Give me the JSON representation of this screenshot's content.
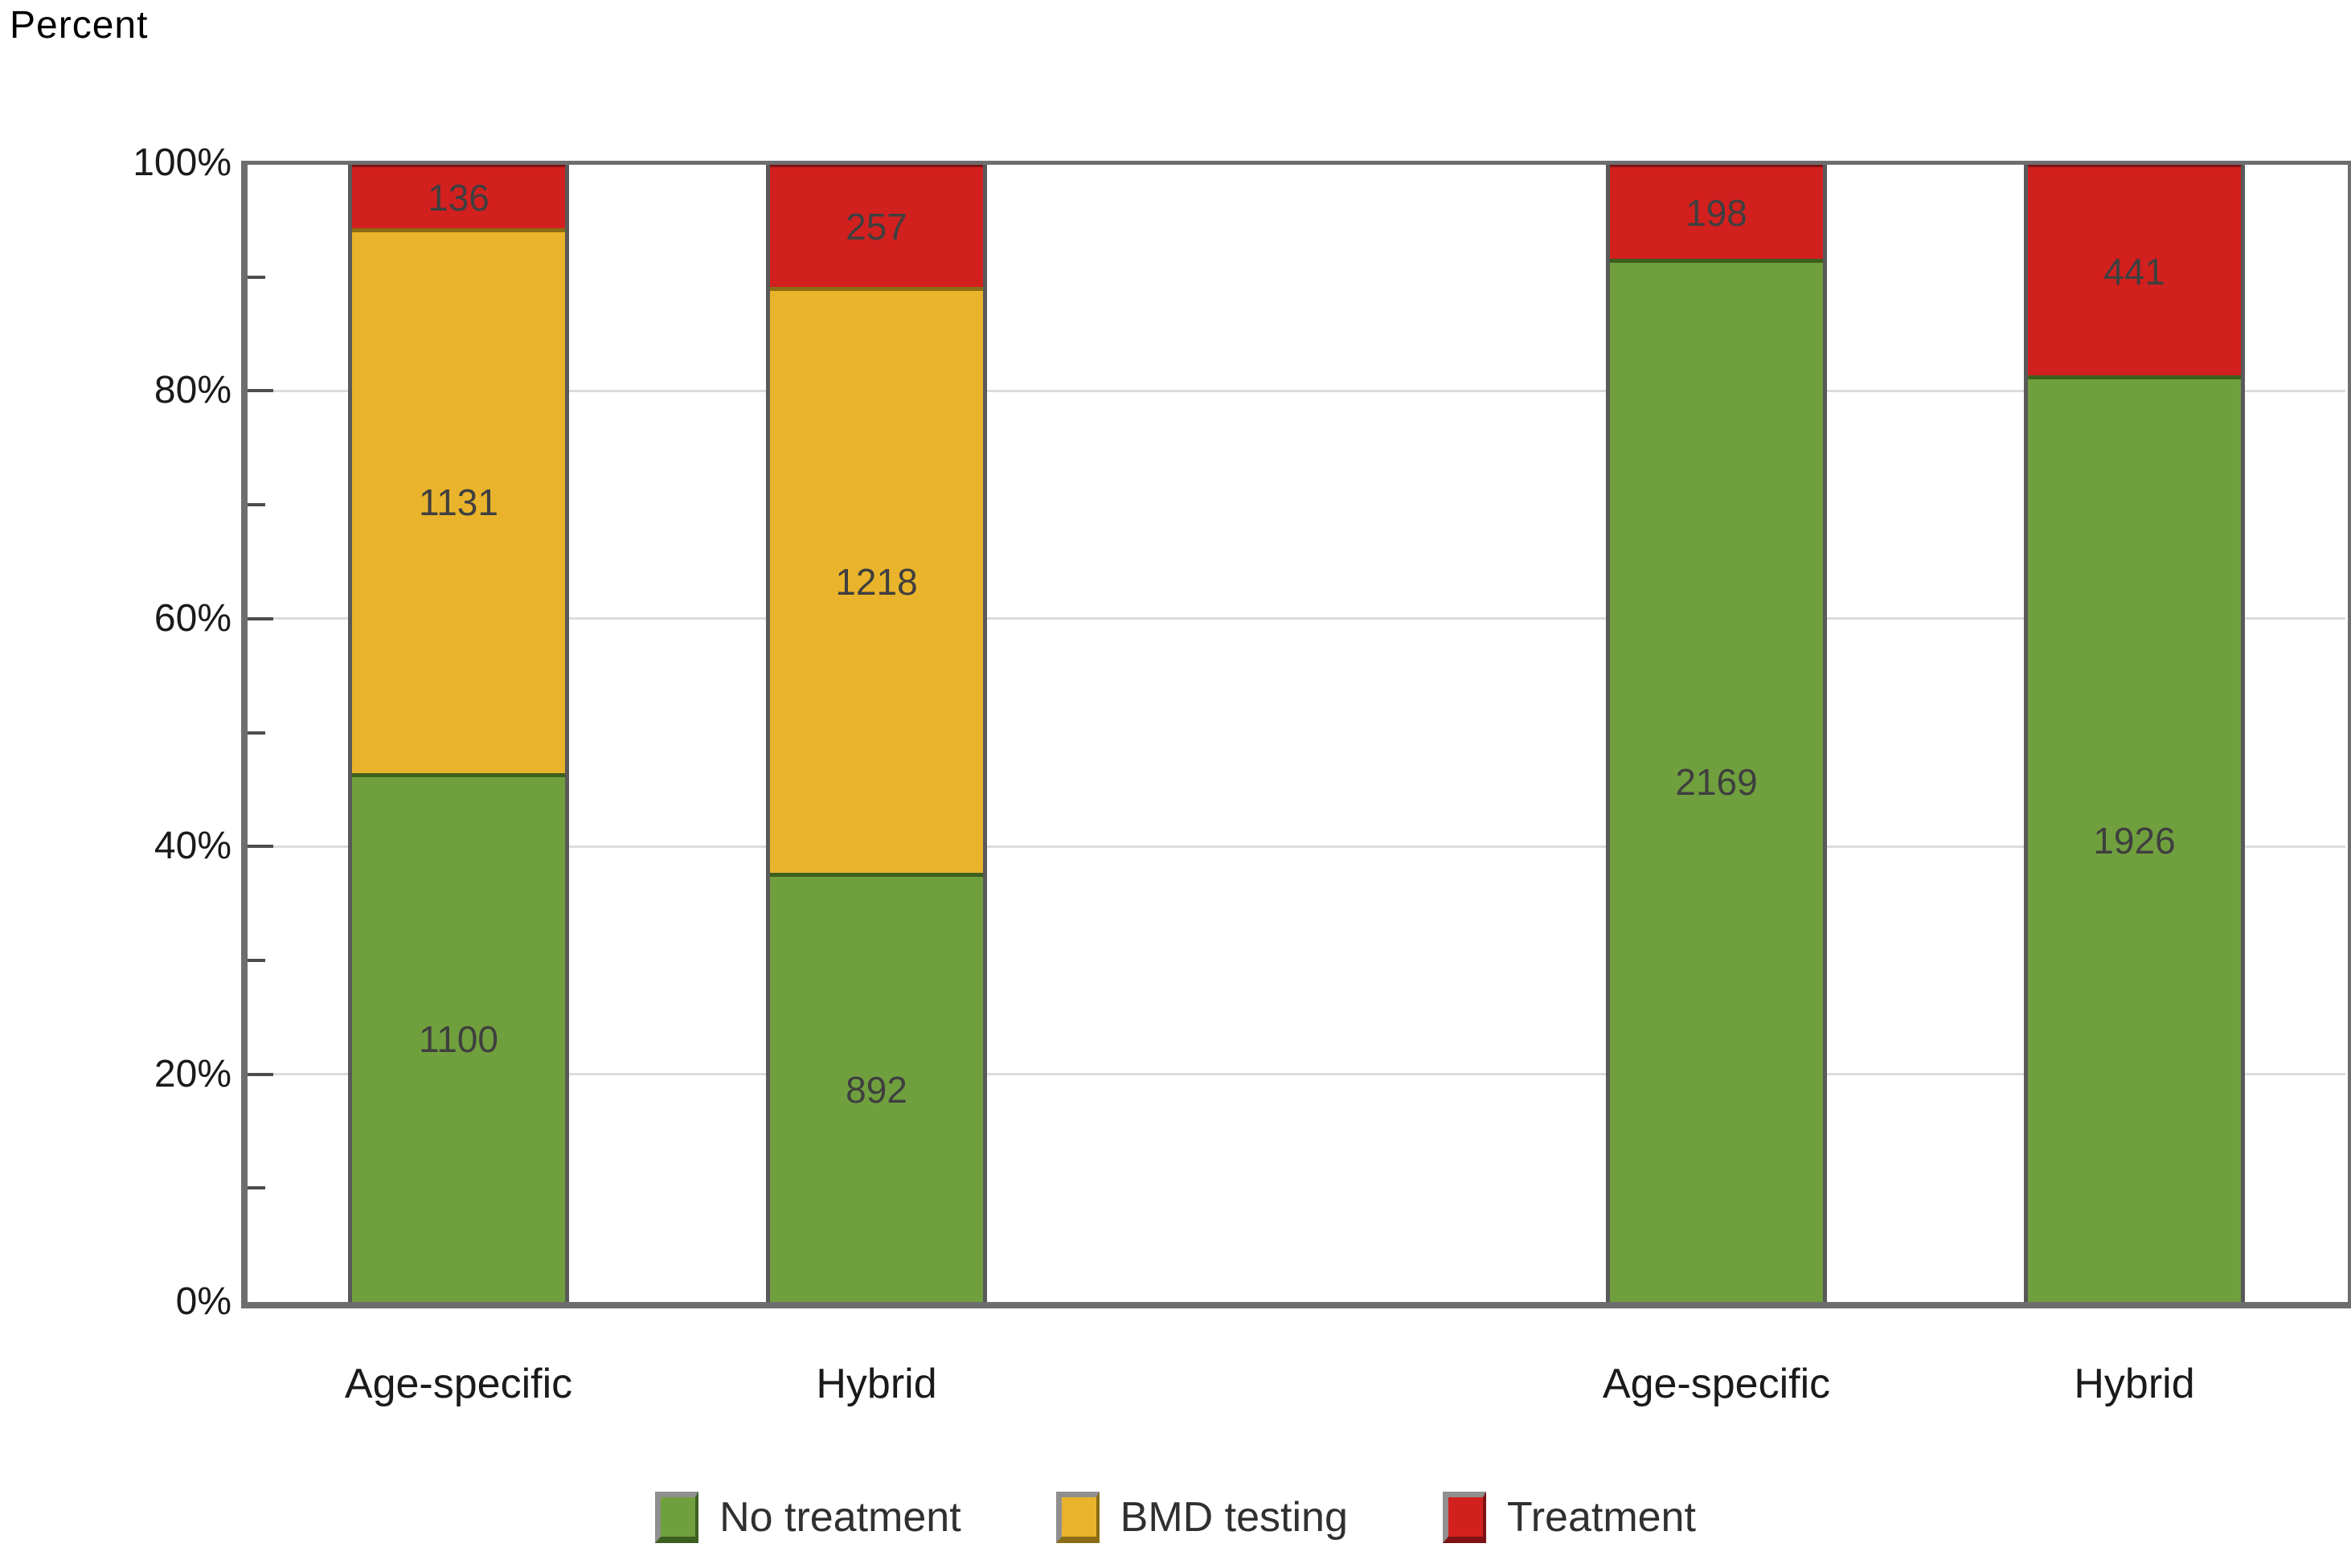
{
  "chart_data": {
    "type": "bar",
    "variant": "percent-stacked-column",
    "title": "Percent",
    "categories": [
      "Age-specific",
      "Hybrid",
      "Age-specific",
      "Hybrid"
    ],
    "series": [
      {
        "name": "No treatment",
        "color": "#70A03E",
        "border_color": "#3D5F1E",
        "values": [
          1100,
          892,
          2169,
          1926
        ]
      },
      {
        "name": "BMD testing",
        "color": "#E9B42B",
        "border_color": "#8A6D14",
        "values": [
          1131,
          1218,
          0,
          0
        ]
      },
      {
        "name": "Treatment",
        "color": "#D2201F",
        "border_color": "#7E1215",
        "values": [
          136,
          257,
          198,
          441
        ]
      }
    ],
    "ylim": [
      0,
      100
    ],
    "y_tick_labels": [
      "0%",
      "20%",
      "40%",
      "60%",
      "80%",
      "100%"
    ],
    "y_major_step_pct": 20,
    "y_minor_step_pct": 10,
    "grid": "horizontal-major-light",
    "legend_position": "bottom"
  },
  "styles": {
    "axis_color": "#6E6E6E",
    "tick_color": "#4d4d4d",
    "gridline_color": "#DCDCDC",
    "bar_side_border_color": "#595959",
    "value_label_color": "#3F3F3F",
    "text_color": "#1a1a1a",
    "background": "#FFFFFF"
  }
}
